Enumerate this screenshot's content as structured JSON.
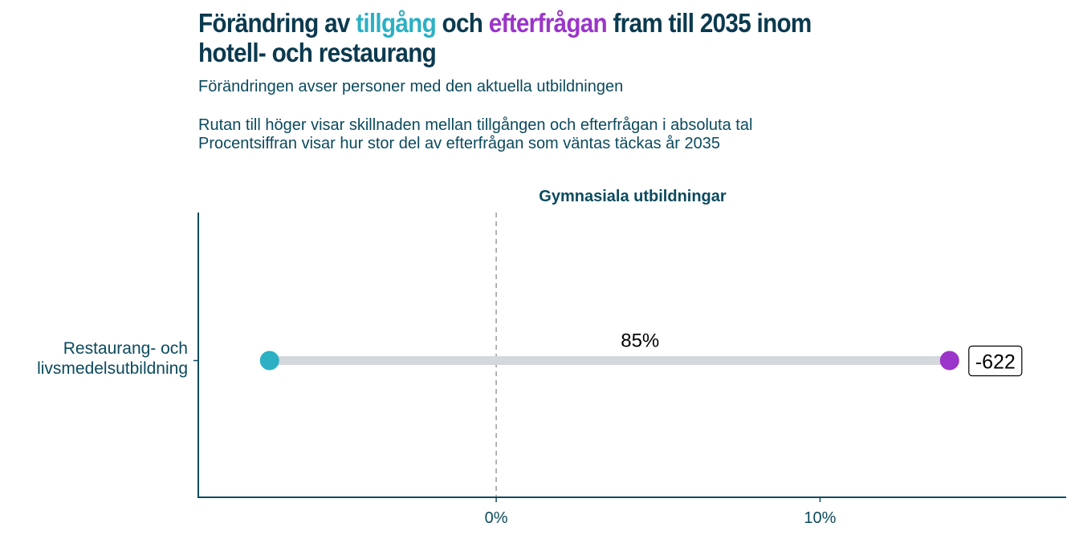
{
  "header": {
    "title_parts": [
      "Förändring av ",
      "tillgång",
      " och ",
      "efterfrågan",
      " fram till 2035 inom"
    ],
    "title_line2": "hotell- och restaurang",
    "subtitle": "Förändringen avser personer med den aktuella utbildningen",
    "note_line1": "Rutan till höger visar skillnaden mellan tillgången och efterfrågan i absoluta tal",
    "note_line2": "Procentsiffran visar hur stor del av efterfrågan som väntas täckas år 2035"
  },
  "colors": {
    "supply": "#2bb0c4",
    "demand": "#9b35c9",
    "text": "#0b3a4f",
    "segment": "#d4d7dc"
  },
  "chart_data": {
    "type": "scatter",
    "title": "Gymnasiala utbildningar",
    "xlabel": "",
    "ylabel": "",
    "categories": [
      "Restaurang- och livsmedelsutbildning"
    ],
    "category_lines": [
      [
        "Restaurang- och",
        "livsmedelsutbildning"
      ]
    ],
    "series": [
      {
        "name": "tillgång",
        "values": [
          -7.0
        ]
      },
      {
        "name": "efterfrågan",
        "values": [
          14.0
        ]
      }
    ],
    "coverage_labels": [
      "85%"
    ],
    "difference_labels": [
      "-622"
    ],
    "xlim": [
      -9.2,
      17.6
    ],
    "xticks": [
      0,
      10
    ],
    "xtick_labels": [
      "0%",
      "10%"
    ],
    "reference_line": 0,
    "grid": false
  }
}
